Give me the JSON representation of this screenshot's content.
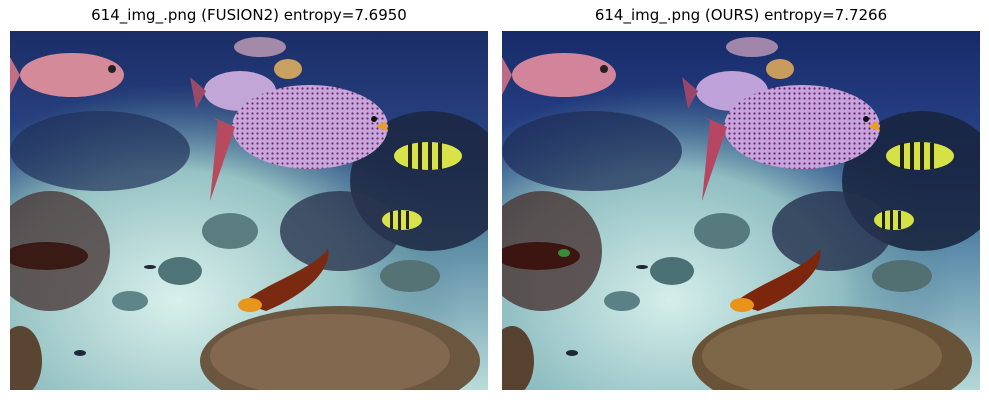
{
  "panels": [
    {
      "title": "614_img_.png (FUSION2) entropy=7.6950",
      "scene": "underwater-reef"
    },
    {
      "title": "614_img_.png (OURS) entropy=7.7266",
      "scene": "underwater-reef"
    }
  ],
  "colors": {
    "water_deep": "#1b2f6a",
    "water_mid": "#2e4c8f",
    "sand_light": "#c9e6e4",
    "sand_mid": "#8fbcc0",
    "coral": "#6b5640",
    "fish_pink": "#d68aa0",
    "fish_purple": "#c2a6d8",
    "fish_orange": "#c6601c",
    "stripe_yellow": "#d8e34a"
  }
}
